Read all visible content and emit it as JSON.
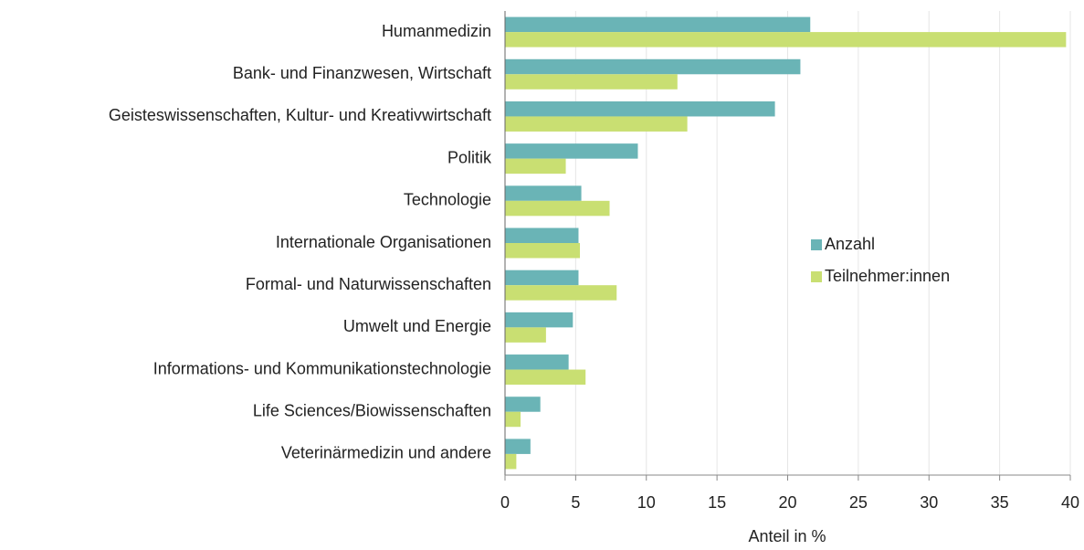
{
  "chart_data": {
    "type": "barh",
    "categories": [
      "Humanmedizin",
      "Bank- und Finanzwesen, Wirtschaft",
      "Geisteswissenschaften, Kultur- und Kreativwirtschaft",
      "Politik",
      "Technologie",
      "Internationale Organisationen",
      "Formal- und Naturwissenschaften",
      "Umwelt und Energie",
      "Informations- und Kommunikationstechnologie",
      "Life Sciences/Biowissenschaften",
      "Veterinärmedizin und andere"
    ],
    "series": [
      {
        "name": "Anzahl",
        "color": "#6ab4b6",
        "values": [
          21.6,
          20.9,
          19.1,
          9.4,
          5.4,
          5.2,
          5.2,
          4.8,
          4.5,
          2.5,
          1.8
        ]
      },
      {
        "name": "Teilnehmer:innen",
        "color": "#c9df72",
        "values": [
          39.7,
          12.2,
          12.9,
          4.3,
          7.4,
          5.3,
          7.9,
          2.9,
          5.7,
          1.1,
          0.8
        ]
      }
    ],
    "xlabel": "Anteil in %",
    "xlim": [
      0,
      40
    ],
    "xticks": [
      0,
      5,
      10,
      15,
      20,
      25,
      30,
      35,
      40
    ],
    "grid": true,
    "legend": "right"
  }
}
